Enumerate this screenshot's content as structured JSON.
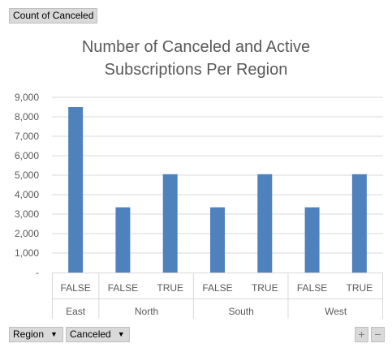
{
  "value_field_button": {
    "label": "Count of Canceled"
  },
  "axis_field_buttons": [
    {
      "label": "Region"
    },
    {
      "label": "Canceled"
    }
  ],
  "zoom": {
    "expand_label": "+",
    "collapse_label": "−"
  },
  "chart_data": {
    "type": "bar",
    "title": "Number of Canceled and Active Subscriptions Per Region",
    "title_lines": [
      "Number of Canceled and Active",
      "Subscriptions Per Region"
    ],
    "groups": [
      {
        "name": "East",
        "categories": [
          "FALSE"
        ]
      },
      {
        "name": "North",
        "categories": [
          "FALSE",
          "TRUE"
        ]
      },
      {
        "name": "South",
        "categories": [
          "FALSE",
          "TRUE"
        ]
      },
      {
        "name": "West",
        "categories": [
          "FALSE",
          "TRUE"
        ]
      }
    ],
    "categories": [
      "FALSE",
      "FALSE",
      "TRUE",
      "FALSE",
      "TRUE",
      "FALSE",
      "TRUE"
    ],
    "values": [
      8500,
      3350,
      5050,
      3350,
      5050,
      3350,
      5050
    ],
    "ylim": [
      0,
      9000
    ],
    "yticks": [
      {
        "value": 0,
        "label": "-"
      },
      {
        "value": 1000,
        "label": "1,000"
      },
      {
        "value": 2000,
        "label": "2,000"
      },
      {
        "value": 3000,
        "label": "3,000"
      },
      {
        "value": 4000,
        "label": "4,000"
      },
      {
        "value": 5000,
        "label": "5,000"
      },
      {
        "value": 6000,
        "label": "6,000"
      },
      {
        "value": 7000,
        "label": "7,000"
      },
      {
        "value": 8000,
        "label": "8,000"
      },
      {
        "value": 9000,
        "label": "9,000"
      }
    ],
    "bar_color": "#4f81bd",
    "grid": true,
    "legend": "none"
  }
}
